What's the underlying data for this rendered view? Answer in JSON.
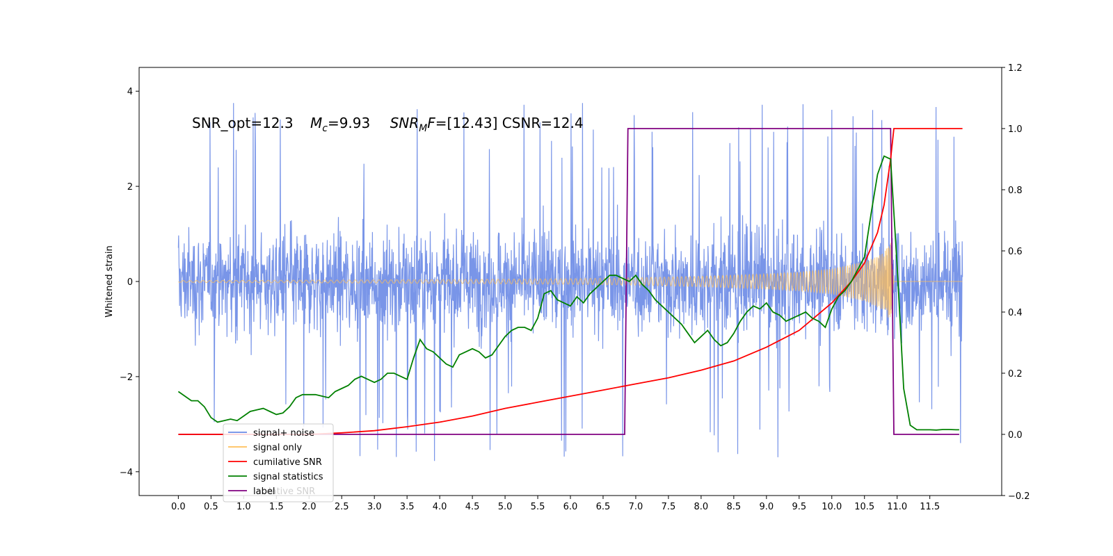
{
  "chart_data": {
    "type": "line",
    "title": "",
    "xlabel": "",
    "ylabel": "Whitened strain",
    "xlim": [
      -0.6,
      12.6
    ],
    "ylim": [
      -4.5,
      4.5
    ],
    "y2lim": [
      -0.2,
      1.2
    ],
    "x_ticks": [
      "0.0",
      "0.5",
      "1.0",
      "1.5",
      "2.0",
      "2.5",
      "3.0",
      "3.5",
      "4.0",
      "4.5",
      "5.0",
      "5.5",
      "6.0",
      "6.5",
      "7.0",
      "7.5",
      "8.0",
      "8.5",
      "9.0",
      "9.5",
      "10.0",
      "10.5",
      "11.0",
      "11.5"
    ],
    "y_ticks": [
      "4",
      "2",
      "0",
      "−2",
      "−4"
    ],
    "y2_ticks": [
      "1.2",
      "1.0",
      "0.8",
      "0.6",
      "0.4",
      "0.2",
      "0.0",
      "−0.2"
    ],
    "annotation": {
      "part1": "SNR_opt=12.3",
      "part2_sym": "M",
      "part2_sub": "c",
      "part2_val": "=9.93",
      "part3_sym": "SNR",
      "part3_sub": "M",
      "part3_sym2": "F",
      "part3_val": "=[12.43] CSNR=12.4"
    },
    "legend": {
      "placement": "lower-left",
      "items": [
        {
          "label": "signal+ noise",
          "color": "#6a8ae6"
        },
        {
          "label": "signal only",
          "color": "#ffbf5a"
        },
        {
          "label": "cumilative SNR",
          "color": "#ff0000"
        },
        {
          "label": "signal statistics",
          "color": "#008000"
        },
        {
          "label": "label",
          "color": "#800080"
        }
      ],
      "ghost_text": "lative SNR"
    },
    "series": [
      {
        "name": "signal+ noise",
        "axis": "left",
        "color": "#6a8ae6",
        "x_range": [
          0.0,
          12.0
        ],
        "envelope": 1.4,
        "spike_max": 4.1,
        "spike_min": -4.1
      },
      {
        "name": "signal only",
        "axis": "left",
        "color": "#ffbf5a",
        "envelope_x": [
          0.0,
          2.0,
          4.0,
          6.0,
          7.0,
          8.0,
          9.0,
          9.5,
          10.0,
          10.5,
          10.8,
          10.9,
          10.95,
          12.0
        ],
        "envelope_y": [
          0.02,
          0.03,
          0.04,
          0.06,
          0.08,
          0.11,
          0.16,
          0.2,
          0.27,
          0.42,
          0.6,
          0.85,
          0.0,
          0.0
        ]
      },
      {
        "name": "cumilative SNR",
        "axis": "right",
        "color": "#ff0000",
        "x": [
          0.0,
          2.0,
          2.5,
          3.0,
          3.5,
          4.0,
          4.5,
          5.0,
          5.5,
          6.0,
          6.5,
          7.0,
          7.5,
          8.0,
          8.5,
          9.0,
          9.5,
          10.0,
          10.3,
          10.5,
          10.7,
          10.8,
          10.9,
          10.95,
          12.0
        ],
        "y": [
          0.0,
          0.0,
          0.005,
          0.012,
          0.025,
          0.04,
          0.06,
          0.085,
          0.105,
          0.125,
          0.145,
          0.165,
          0.185,
          0.21,
          0.24,
          0.285,
          0.34,
          0.43,
          0.5,
          0.56,
          0.66,
          0.75,
          0.9,
          1.0,
          1.0
        ]
      },
      {
        "name": "signal statistics",
        "axis": "right",
        "color": "#008000",
        "x": [
          0.0,
          0.1,
          0.2,
          0.3,
          0.4,
          0.5,
          0.6,
          0.7,
          0.8,
          0.9,
          1.0,
          1.1,
          1.2,
          1.3,
          1.4,
          1.5,
          1.6,
          1.7,
          1.8,
          1.9,
          2.0,
          2.1,
          2.2,
          2.3,
          2.4,
          2.5,
          2.6,
          2.7,
          2.8,
          2.9,
          3.0,
          3.1,
          3.2,
          3.3,
          3.4,
          3.5,
          3.6,
          3.7,
          3.8,
          3.9,
          4.0,
          4.1,
          4.2,
          4.3,
          4.4,
          4.5,
          4.6,
          4.7,
          4.8,
          4.9,
          5.0,
          5.1,
          5.2,
          5.3,
          5.4,
          5.5,
          5.6,
          5.7,
          5.8,
          5.9,
          6.0,
          6.1,
          6.2,
          6.3,
          6.4,
          6.5,
          6.6,
          6.7,
          6.8,
          6.9,
          7.0,
          7.1,
          7.2,
          7.3,
          7.4,
          7.5,
          7.6,
          7.7,
          7.8,
          7.9,
          8.0,
          8.1,
          8.2,
          8.3,
          8.4,
          8.5,
          8.6,
          8.7,
          8.8,
          8.9,
          9.0,
          9.1,
          9.2,
          9.3,
          9.4,
          9.5,
          9.6,
          9.7,
          9.8,
          9.9,
          10.0,
          10.1,
          10.2,
          10.3,
          10.4,
          10.5,
          10.6,
          10.7,
          10.8,
          10.9,
          11.0,
          11.1,
          11.2,
          11.3,
          11.4,
          11.5,
          11.6,
          11.7,
          11.8,
          11.9,
          11.95
        ],
        "y": [
          0.14,
          0.125,
          0.11,
          0.11,
          0.09,
          0.055,
          0.04,
          0.045,
          0.05,
          0.045,
          0.06,
          0.075,
          0.08,
          0.085,
          0.075,
          0.065,
          0.07,
          0.09,
          0.12,
          0.13,
          0.13,
          0.13,
          0.125,
          0.12,
          0.14,
          0.15,
          0.16,
          0.18,
          0.19,
          0.18,
          0.17,
          0.18,
          0.2,
          0.2,
          0.19,
          0.18,
          0.25,
          0.31,
          0.28,
          0.27,
          0.25,
          0.23,
          0.22,
          0.26,
          0.27,
          0.28,
          0.27,
          0.25,
          0.26,
          0.29,
          0.32,
          0.34,
          0.35,
          0.35,
          0.34,
          0.38,
          0.46,
          0.47,
          0.44,
          0.43,
          0.42,
          0.45,
          0.43,
          0.46,
          0.48,
          0.5,
          0.52,
          0.52,
          0.51,
          0.5,
          0.52,
          0.49,
          0.47,
          0.44,
          0.42,
          0.4,
          0.38,
          0.36,
          0.33,
          0.3,
          0.32,
          0.34,
          0.31,
          0.29,
          0.3,
          0.33,
          0.37,
          0.4,
          0.42,
          0.41,
          0.43,
          0.4,
          0.39,
          0.37,
          0.38,
          0.39,
          0.4,
          0.38,
          0.37,
          0.35,
          0.41,
          0.45,
          0.47,
          0.5,
          0.54,
          0.58,
          0.72,
          0.85,
          0.91,
          0.9,
          0.55,
          0.15,
          0.03,
          0.015,
          0.015,
          0.015,
          0.014,
          0.016,
          0.016,
          0.015,
          0.015
        ],
        "final_peak_x": [
          10.7,
          10.8,
          10.9
        ],
        "final_peak_y": [
          0.85,
          0.91,
          0.9
        ]
      },
      {
        "name": "label",
        "axis": "right",
        "color": "#800080",
        "x": [
          0.0,
          6.83,
          6.88,
          10.9,
          10.95,
          11.95
        ],
        "y": [
          0.0,
          0.0,
          1.0,
          1.0,
          0.0,
          0.0
        ]
      }
    ]
  }
}
